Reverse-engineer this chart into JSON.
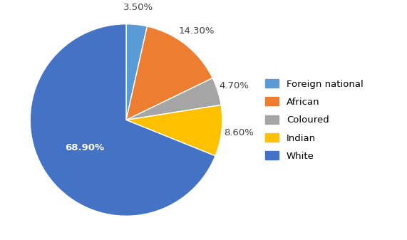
{
  "labels": [
    "Foreign national",
    "African",
    "Coloured",
    "Indian",
    "White"
  ],
  "values": [
    3.5,
    14.3,
    4.7,
    8.6,
    68.9
  ],
  "colors": [
    "#5B9BD5",
    "#ED7D31",
    "#A5A5A5",
    "#FFC000",
    "#4472C4"
  ],
  "pct_labels": [
    "3.50%",
    "14.30%",
    "4.70%",
    "8.60%",
    "68.90%"
  ],
  "legend_labels": [
    "Foreign national",
    "African",
    "Coloured",
    "Indian",
    "White"
  ],
  "background_color": "#FFFFFF",
  "label_fontsize": 9.5,
  "legend_fontsize": 9.5,
  "startangle": 90,
  "figsize": [
    5.71,
    3.37
  ],
  "dpi": 100
}
